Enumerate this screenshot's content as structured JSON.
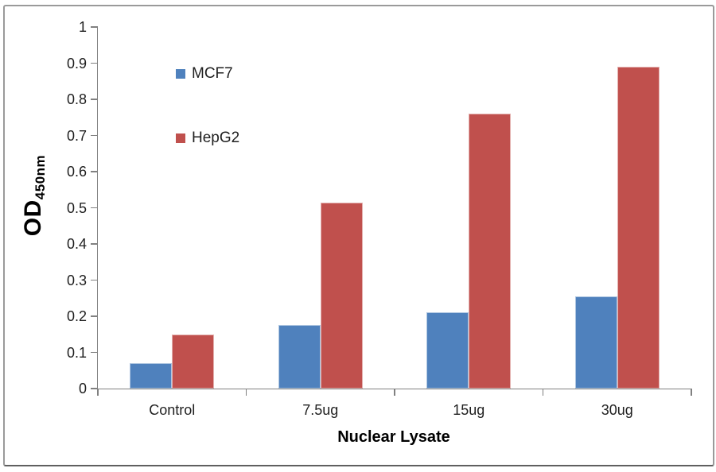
{
  "chart_data": {
    "type": "bar",
    "title": "",
    "categories": [
      "Control",
      "7.5ug",
      "15ug",
      "30ug"
    ],
    "series": [
      {
        "name": "MCF7",
        "color": "#4F81BD",
        "values": [
          0.07,
          0.175,
          0.21,
          0.255
        ]
      },
      {
        "name": "HepG2",
        "color": "#C0504D",
        "values": [
          0.15,
          0.515,
          0.76,
          0.89
        ]
      }
    ],
    "xlabel": "Nuclear Lysate",
    "ylabel": "OD",
    "ylabel_subscript": "450nm",
    "ylim": [
      0,
      1
    ],
    "yticks": [
      "0",
      "0.1",
      "0.2",
      "0.3",
      "0.4",
      "0.5",
      "0.6",
      "0.7",
      "0.8",
      "0.9",
      "1"
    ],
    "grid": false,
    "legend_position": "inside-upper-left",
    "axis_color": "#808080"
  }
}
